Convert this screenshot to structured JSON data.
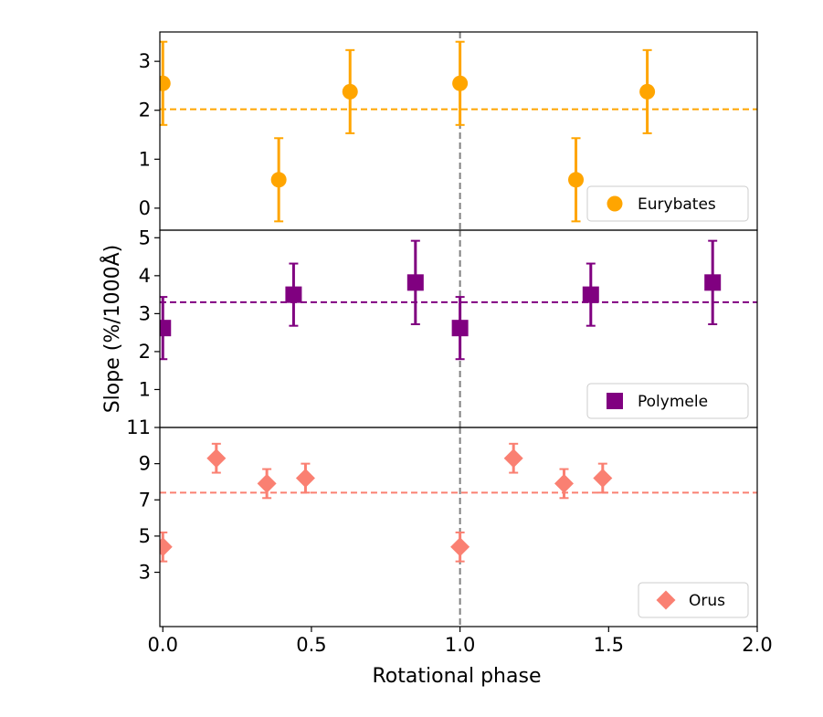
{
  "chart_data": [
    {
      "type": "scatter",
      "panel": "top",
      "series": [
        {
          "name": "Eurybates",
          "color": "#FFA500",
          "marker": "circle",
          "x": [
            0.0,
            0.39,
            0.63,
            1.0,
            1.39,
            1.63
          ],
          "y": [
            2.55,
            0.58,
            2.38,
            2.55,
            0.58,
            2.38
          ],
          "yerr": [
            0.85,
            0.85,
            0.85,
            0.85,
            0.85,
            0.85
          ]
        }
      ],
      "mean_line": 2.02,
      "ylim": [
        -0.45,
        3.6
      ],
      "yticks": [
        "0",
        "1",
        "2",
        "3"
      ],
      "legend": "lower-right"
    },
    {
      "type": "scatter",
      "panel": "middle",
      "series": [
        {
          "name": "Polymele",
          "color": "#800080",
          "marker": "square",
          "x": [
            0.0,
            0.44,
            0.85,
            1.0,
            1.44,
            1.85
          ],
          "y": [
            2.62,
            3.5,
            3.82,
            2.62,
            3.5,
            3.82
          ],
          "yerr": [
            0.82,
            0.82,
            1.1,
            0.82,
            0.82,
            1.1
          ]
        }
      ],
      "mean_line": 3.3,
      "ylim": [
        0,
        5.2
      ],
      "yticks": [
        "1",
        "2",
        "3",
        "4",
        "5"
      ],
      "legend": "lower-right"
    },
    {
      "type": "scatter",
      "panel": "bottom",
      "series": [
        {
          "name": "Orus",
          "color": "#FA8072",
          "marker": "diamond",
          "x": [
            0.0,
            0.18,
            0.35,
            0.48,
            1.0,
            1.18,
            1.35,
            1.48
          ],
          "y": [
            4.4,
            9.3,
            7.9,
            8.2,
            4.4,
            9.3,
            7.9,
            8.2
          ],
          "yerr": [
            0.8,
            0.8,
            0.8,
            0.8,
            0.8,
            0.8,
            0.8,
            0.8
          ]
        }
      ],
      "mean_line": 7.4,
      "ylim": [
        0,
        11
      ],
      "yticks": [
        "3",
        "5",
        "7",
        "9",
        "11"
      ],
      "legend": "lower-right"
    }
  ],
  "shared": {
    "xlabel": "Rotational phase",
    "ylabel": "Slope (%/1000Å)",
    "xlim": [
      -0.01,
      2.0
    ],
    "xticks": [
      "0.0",
      "0.5",
      "1.0",
      "1.5",
      "2.0"
    ],
    "vline": 1.0,
    "vline_color": "#808080",
    "grid": false
  }
}
